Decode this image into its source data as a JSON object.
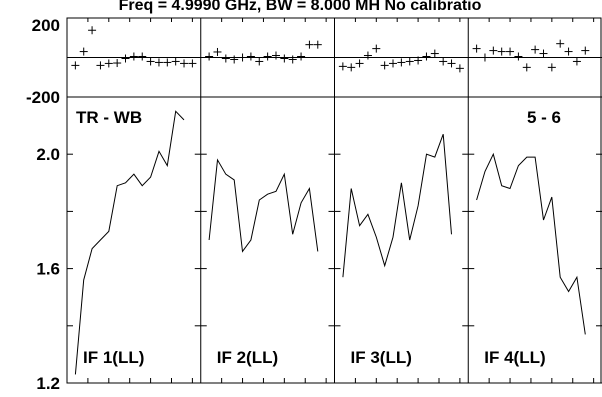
{
  "chart_data": {
    "type": "line",
    "title": "Freq = 4.9990 GHz, BW = 8.000 MH   No calibratio",
    "baseline_label": "TR - WB",
    "antenna_label": "5 - 6",
    "top_panel": {
      "plot_type": "scatter",
      "marker": "+",
      "ylim": [
        -200,
        200
      ],
      "ytick_labels": [
        "200",
        "-200"
      ],
      "reference_line": 0
    },
    "bottom_panel": {
      "plot_type": "line",
      "ylim": [
        1.2,
        2.2
      ],
      "ytick_labels": [
        "2.0",
        "1.6",
        "1.2"
      ],
      "yticks": [
        1.2,
        1.4,
        1.6,
        1.8,
        2.0,
        2.2
      ]
    },
    "x_range": [
      0,
      16
    ],
    "x_ticks": [
      2.5,
      5,
      7.5,
      10,
      12.5,
      15
    ],
    "panels": [
      {
        "label": "IF 1(LL)",
        "phase": [
          {
            "x": 1,
            "y": -40
          },
          {
            "x": 2,
            "y": 30
          },
          {
            "x": 3,
            "y": 138
          },
          {
            "x": 4,
            "y": -40
          },
          {
            "x": 5,
            "y": -30
          },
          {
            "x": 6,
            "y": -28
          },
          {
            "x": 7,
            "y": -5
          },
          {
            "x": 8,
            "y": 5
          },
          {
            "x": 9,
            "y": 5
          },
          {
            "x": 10,
            "y": -20
          },
          {
            "x": 11,
            "y": -25
          },
          {
            "x": 12,
            "y": -25
          },
          {
            "x": 13,
            "y": -20
          },
          {
            "x": 14,
            "y": -30
          },
          {
            "x": 15,
            "y": -30
          }
        ],
        "amp": [
          {
            "x": 1,
            "y": 1.23
          },
          {
            "x": 2,
            "y": 1.56
          },
          {
            "x": 3,
            "y": 1.67
          },
          {
            "x": 4,
            "y": 1.7
          },
          {
            "x": 5,
            "y": 1.73
          },
          {
            "x": 6,
            "y": 1.89
          },
          {
            "x": 7,
            "y": 1.9
          },
          {
            "x": 8,
            "y": 1.93
          },
          {
            "x": 9,
            "y": 1.89
          },
          {
            "x": 10,
            "y": 1.92
          },
          {
            "x": 11,
            "y": 2.01
          },
          {
            "x": 12,
            "y": 1.96
          },
          {
            "x": 13,
            "y": 2.15
          },
          {
            "x": 14,
            "y": 2.12
          }
        ]
      },
      {
        "label": "IF 2(LL)",
        "phase": [
          {
            "x": 1,
            "y": 5
          },
          {
            "x": 2,
            "y": 28
          },
          {
            "x": 3,
            "y": -5
          },
          {
            "x": 4,
            "y": -10
          },
          {
            "x": 5,
            "y": 0
          },
          {
            "x": 6,
            "y": 5
          },
          {
            "x": 7,
            "y": -20
          },
          {
            "x": 8,
            "y": 5
          },
          {
            "x": 9,
            "y": 10
          },
          {
            "x": 10,
            "y": -5
          },
          {
            "x": 11,
            "y": -10
          },
          {
            "x": 12,
            "y": 5
          },
          {
            "x": 13,
            "y": 65
          },
          {
            "x": 14,
            "y": 65
          }
        ],
        "amp": [
          {
            "x": 1,
            "y": 1.7
          },
          {
            "x": 2,
            "y": 1.98
          },
          {
            "x": 3,
            "y": 1.93
          },
          {
            "x": 4,
            "y": 1.91
          },
          {
            "x": 5,
            "y": 1.66
          },
          {
            "x": 6,
            "y": 1.7
          },
          {
            "x": 7,
            "y": 1.84
          },
          {
            "x": 8,
            "y": 1.86
          },
          {
            "x": 9,
            "y": 1.87
          },
          {
            "x": 10,
            "y": 1.93
          },
          {
            "x": 11,
            "y": 1.72
          },
          {
            "x": 12,
            "y": 1.83
          },
          {
            "x": 13,
            "y": 1.88
          },
          {
            "x": 14,
            "y": 1.66
          }
        ]
      },
      {
        "label": "IF 3(LL)",
        "phase": [
          {
            "x": 1,
            "y": -45
          },
          {
            "x": 2,
            "y": -50
          },
          {
            "x": 3,
            "y": -30
          },
          {
            "x": 4,
            "y": 10
          },
          {
            "x": 5,
            "y": 45
          },
          {
            "x": 6,
            "y": -40
          },
          {
            "x": 7,
            "y": -30
          },
          {
            "x": 8,
            "y": -25
          },
          {
            "x": 9,
            "y": -20
          },
          {
            "x": 10,
            "y": -15
          },
          {
            "x": 11,
            "y": 5
          },
          {
            "x": 12,
            "y": 20
          },
          {
            "x": 13,
            "y": -20
          },
          {
            "x": 14,
            "y": -30
          },
          {
            "x": 15,
            "y": -55
          }
        ],
        "amp": [
          {
            "x": 1,
            "y": 1.57
          },
          {
            "x": 2,
            "y": 1.88
          },
          {
            "x": 3,
            "y": 1.75
          },
          {
            "x": 4,
            "y": 1.79
          },
          {
            "x": 5,
            "y": 1.71
          },
          {
            "x": 6,
            "y": 1.61
          },
          {
            "x": 7,
            "y": 1.71
          },
          {
            "x": 8,
            "y": 1.9
          },
          {
            "x": 9,
            "y": 1.7
          },
          {
            "x": 10,
            "y": 1.82
          },
          {
            "x": 11,
            "y": 2.0
          },
          {
            "x": 12,
            "y": 1.99
          },
          {
            "x": 13,
            "y": 2.07
          },
          {
            "x": 14,
            "y": 1.72
          }
        ]
      },
      {
        "label": "IF 4(LL)",
        "phase": [
          {
            "x": 1,
            "y": 45
          },
          {
            "x": 2,
            "y": 0
          },
          {
            "x": 3,
            "y": 35
          },
          {
            "x": 4,
            "y": 30
          },
          {
            "x": 5,
            "y": 30
          },
          {
            "x": 6,
            "y": 5
          },
          {
            "x": 7,
            "y": -50
          },
          {
            "x": 8,
            "y": 40
          },
          {
            "x": 9,
            "y": 20
          },
          {
            "x": 10,
            "y": -50
          },
          {
            "x": 11,
            "y": 70
          },
          {
            "x": 12,
            "y": 30
          },
          {
            "x": 13,
            "y": -20
          },
          {
            "x": 14,
            "y": 35
          }
        ],
        "amp": [
          {
            "x": 1,
            "y": 1.84
          },
          {
            "x": 2,
            "y": 1.94
          },
          {
            "x": 3,
            "y": 2.0
          },
          {
            "x": 4,
            "y": 1.89
          },
          {
            "x": 5,
            "y": 1.88
          },
          {
            "x": 6,
            "y": 1.96
          },
          {
            "x": 7,
            "y": 1.99
          },
          {
            "x": 8,
            "y": 1.99
          },
          {
            "x": 9,
            "y": 1.77
          },
          {
            "x": 10,
            "y": 1.85
          },
          {
            "x": 11,
            "y": 1.57
          },
          {
            "x": 12,
            "y": 1.52
          },
          {
            "x": 13,
            "y": 1.57
          },
          {
            "x": 14,
            "y": 1.37
          }
        ]
      }
    ]
  }
}
